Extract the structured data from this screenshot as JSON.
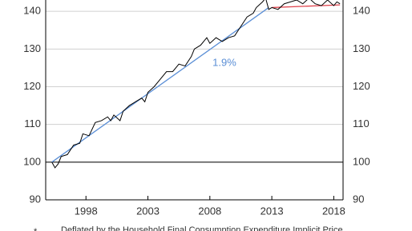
{
  "chart_data": {
    "type": "line",
    "x": [
      1995.25,
      1995.5,
      1995.75,
      1996,
      1996.5,
      1997,
      1997.5,
      1997.75,
      1998.25,
      1998.75,
      1999.25,
      1999.75,
      2000,
      2000.25,
      2000.75,
      2001,
      2001.5,
      2002,
      2002.5,
      2002.75,
      2003,
      2003.5,
      2004,
      2004.5,
      2005,
      2005.5,
      2006,
      2006.5,
      2006.75,
      2007.25,
      2007.75,
      2008,
      2008.5,
      2009,
      2009.5,
      2010,
      2010.5,
      2011,
      2011.5,
      2011.75,
      2012.25,
      2012.5,
      2012.75,
      2013,
      2013.5,
      2014,
      2014.5,
      2015,
      2015.5,
      2016,
      2016.5,
      2017,
      2017.5,
      2018,
      2018.25,
      2018.5
    ],
    "series": [
      {
        "color": "#000000",
        "values": [
          100,
          98.5,
          99.5,
          101.5,
          102,
          104.5,
          105,
          107.5,
          107,
          110.5,
          111,
          112,
          111,
          112.5,
          111,
          113.5,
          115,
          116,
          117,
          116,
          118.5,
          120,
          122,
          124,
          124,
          126,
          125.5,
          128,
          130,
          131,
          133,
          131.5,
          133,
          132,
          133,
          133.5,
          136,
          138.5,
          139.5,
          141,
          142.5,
          143.5,
          140.5,
          141,
          140.5,
          142,
          142.5,
          143,
          142,
          143.5,
          142,
          141.5,
          143,
          141.5,
          142.5,
          142
        ]
      }
    ],
    "trend_lines": [
      {
        "color": "#5b8fd6",
        "x": [
          1995.25,
          2012.75
        ],
        "values": [
          100,
          141
        ]
      },
      {
        "color": "#e0464f",
        "x": [
          2013,
          2018.5
        ],
        "values": [
          141,
          141.7
        ]
      }
    ],
    "annotations": [
      {
        "text": "1.9%",
        "color": "#5b8fd6"
      }
    ],
    "reference_line": 100,
    "xlim": [
      1994.75,
      2018.75
    ],
    "xticks": [
      1998,
      2003,
      2008,
      2013,
      2018
    ],
    "ylim": [
      90,
      143
    ],
    "yticks": [
      90,
      100,
      110,
      120,
      130,
      140
    ],
    "grid": true,
    "footnote": {
      "marker": "*",
      "text": "Deflated by the Household Final Consumption Expenditure Implicit Price"
    }
  }
}
